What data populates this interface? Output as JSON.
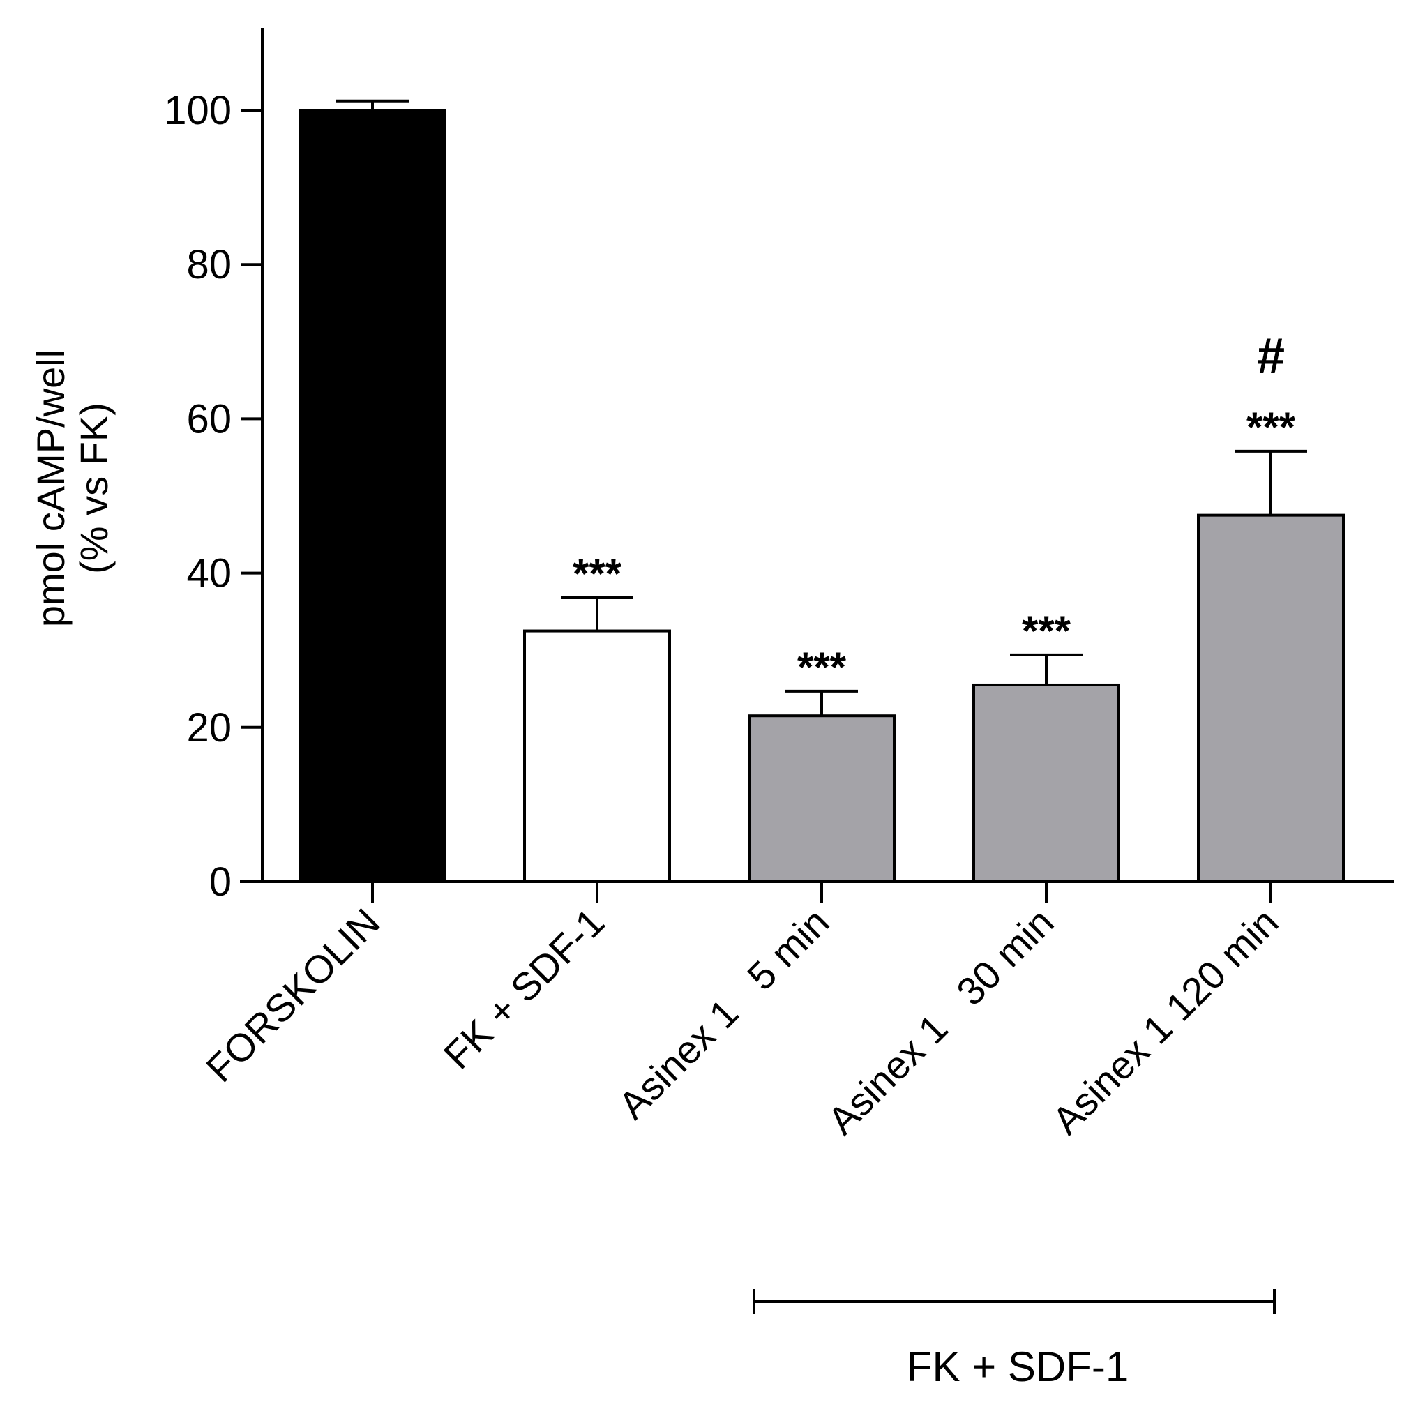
{
  "chart_data": {
    "type": "bar",
    "ylabel_lines": [
      "pmol cAMP/well",
      "(% vs FK)"
    ],
    "ylim": [
      0,
      110
    ],
    "yticks": [
      0,
      20,
      40,
      60,
      80,
      100
    ],
    "categories": [
      "FORSKOLIN",
      "FK + SDF-1",
      "Asinex 1   5 min",
      "Asinex 1   30 min",
      "Asinex 1 120 min"
    ],
    "values": [
      100,
      32.5,
      21.5,
      25.5,
      47.5
    ],
    "errors": [
      1.2,
      4.3,
      3.2,
      3.9,
      8.3
    ],
    "fills": [
      "#000000",
      "#ffffff",
      "#a4a3a8",
      "#a4a3a8",
      "#a4a3a8"
    ],
    "significance": [
      "",
      "***",
      "***",
      "***",
      "***"
    ],
    "significance_extra": [
      "",
      "",
      "",
      "",
      "#"
    ],
    "group_bracket": {
      "label": "FK + SDF-1",
      "from_category": 2,
      "to_category": 4
    }
  }
}
